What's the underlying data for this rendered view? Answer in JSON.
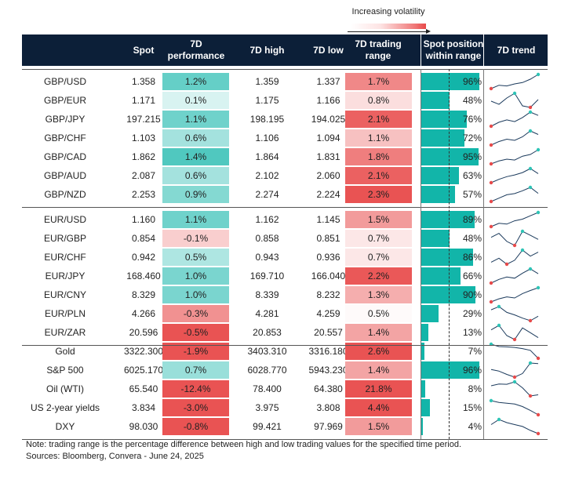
{
  "legend": {
    "label": "Increasing volatility"
  },
  "headers": {
    "instrument": "",
    "spot": "Spot",
    "perf": "7D performance",
    "high": "7D high",
    "low": "7D low",
    "range": "7D trading range",
    "position": "Spot position within range",
    "trend": "7D trend"
  },
  "colors": {
    "header_bg": "#0c1f38",
    "teal": "#12b5a9",
    "red": "#e84a4a",
    "trend_line": "#1b3a5c",
    "trend_max": "#2ec4b6",
    "trend_min": "#e84a4a"
  },
  "chart_data": {
    "type": "table",
    "columns": [
      "",
      "Spot",
      "7D performance",
      "7D high",
      "7D low",
      "7D trading range",
      "Spot position within range",
      "7D trend"
    ],
    "groups": [
      {
        "rows": [
          {
            "name": "GBP/USD",
            "spot": "1.358",
            "perf": "1.2%",
            "high": "1.359",
            "low": "1.337",
            "range": "1.7%",
            "pos": "96%",
            "perf_v": 1.2,
            "range_v": 1.7,
            "pos_v": 96,
            "trend": [
              1.337,
              1.342,
              1.341,
              1.344,
              1.346,
              1.351,
              1.358
            ]
          },
          {
            "name": "GBP/EUR",
            "spot": "1.171",
            "perf": "0.1%",
            "high": "1.175",
            "low": "1.166",
            "range": "0.8%",
            "pos": "48%",
            "perf_v": 0.1,
            "range_v": 0.8,
            "pos_v": 48,
            "trend": [
              1.17,
              1.168,
              1.172,
              1.175,
              1.167,
              1.166,
              1.171
            ]
          },
          {
            "name": "GBP/JPY",
            "spot": "197.215",
            "perf": "1.1%",
            "high": "198.195",
            "low": "194.025",
            "range": "2.1%",
            "pos": "76%",
            "perf_v": 1.1,
            "range_v": 2.1,
            "pos_v": 76,
            "trend": [
              194.025,
              195.2,
              195.9,
              195.4,
              196.6,
              198.195,
              197.215
            ]
          },
          {
            "name": "GBP/CHF",
            "spot": "1.103",
            "perf": "0.6%",
            "high": "1.106",
            "low": "1.094",
            "range": "1.1%",
            "pos": "72%",
            "perf_v": 0.6,
            "range_v": 1.1,
            "pos_v": 72,
            "trend": [
              1.094,
              1.097,
              1.099,
              1.098,
              1.101,
              1.106,
              1.103
            ]
          },
          {
            "name": "GBP/CAD",
            "spot": "1.862",
            "perf": "1.4%",
            "high": "1.864",
            "low": "1.831",
            "range": "1.8%",
            "pos": "95%",
            "perf_v": 1.4,
            "range_v": 1.8,
            "pos_v": 95,
            "trend": [
              1.831,
              1.838,
              1.842,
              1.84,
              1.849,
              1.853,
              1.864
            ]
          },
          {
            "name": "GBP/AUD",
            "spot": "2.087",
            "perf": "0.6%",
            "high": "2.102",
            "low": "2.060",
            "range": "2.1%",
            "pos": "63%",
            "perf_v": 0.6,
            "range_v": 2.1,
            "pos_v": 63,
            "trend": [
              2.06,
              2.07,
              2.078,
              2.083,
              2.09,
              2.102,
              2.087
            ]
          },
          {
            "name": "GBP/NZD",
            "spot": "2.253",
            "perf": "0.9%",
            "high": "2.274",
            "low": "2.224",
            "range": "2.3%",
            "pos": "57%",
            "perf_v": 0.9,
            "range_v": 2.3,
            "pos_v": 57,
            "trend": [
              2.224,
              2.236,
              2.248,
              2.252,
              2.262,
              2.274,
              2.253
            ]
          }
        ]
      },
      {
        "rows": [
          {
            "name": "EUR/USD",
            "spot": "1.160",
            "perf": "1.1%",
            "high": "1.162",
            "low": "1.145",
            "range": "1.5%",
            "pos": "89%",
            "perf_v": 1.1,
            "range_v": 1.5,
            "pos_v": 89,
            "trend": [
              1.145,
              1.149,
              1.148,
              1.152,
              1.154,
              1.158,
              1.162
            ]
          },
          {
            "name": "EUR/GBP",
            "spot": "0.854",
            "perf": "-0.1%",
            "high": "0.858",
            "low": "0.851",
            "range": "0.7%",
            "pos": "48%",
            "perf_v": -0.1,
            "range_v": 0.7,
            "pos_v": 48,
            "trend": [
              0.855,
              0.857,
              0.853,
              0.851,
              0.858,
              0.856,
              0.854
            ]
          },
          {
            "name": "EUR/CHF",
            "spot": "0.942",
            "perf": "0.5%",
            "high": "0.943",
            "low": "0.936",
            "range": "0.7%",
            "pos": "86%",
            "perf_v": 0.5,
            "range_v": 0.7,
            "pos_v": 86,
            "trend": [
              0.937,
              0.939,
              0.936,
              0.938,
              0.943,
              0.94,
              0.942
            ]
          },
          {
            "name": "EUR/JPY",
            "spot": "168.460",
            "perf": "1.0%",
            "high": "169.710",
            "low": "166.040",
            "range": "2.2%",
            "pos": "66%",
            "perf_v": 1.0,
            "range_v": 2.2,
            "pos_v": 66,
            "trend": [
              166.04,
              167.0,
              167.6,
              167.3,
              168.6,
              169.71,
              168.46
            ]
          },
          {
            "name": "EUR/CNY",
            "spot": "8.329",
            "perf": "1.0%",
            "high": "8.339",
            "low": "8.232",
            "range": "1.3%",
            "pos": "90%",
            "perf_v": 1.0,
            "range_v": 1.3,
            "pos_v": 90,
            "trend": [
              8.232,
              8.255,
              8.27,
              8.262,
              8.295,
              8.318,
              8.339
            ]
          },
          {
            "name": "EUR/PLN",
            "spot": "4.266",
            "perf": "-0.3%",
            "high": "4.281",
            "low": "4.259",
            "range": "0.5%",
            "pos": "29%",
            "perf_v": -0.3,
            "range_v": 0.5,
            "pos_v": 29,
            "trend": [
              4.276,
              4.281,
              4.272,
              4.268,
              4.263,
              4.259,
              4.266
            ]
          },
          {
            "name": "EUR/ZAR",
            "spot": "20.596",
            "perf": "-0.5%",
            "high": "20.853",
            "low": "20.557",
            "range": "1.4%",
            "pos": "13%",
            "perf_v": -0.5,
            "range_v": 1.4,
            "pos_v": 13,
            "trend": [
              20.76,
              20.853,
              20.64,
              20.557,
              20.8,
              20.7,
              20.596
            ]
          }
        ]
      },
      {
        "rows": [
          {
            "name": "Gold",
            "spot": "3322.300",
            "perf": "-1.9%",
            "high": "3403.310",
            "low": "3316.180",
            "range": "2.6%",
            "pos": "7%",
            "perf_v": -1.9,
            "range_v": 2.6,
            "pos_v": 7,
            "trend": [
              3403.31,
              3390.0,
              3388.0,
              3385.0,
              3378.0,
              3368.0,
              3322.3
            ]
          },
          {
            "name": "S&P 500",
            "spot": "6025.170",
            "perf": "0.7%",
            "high": "6028.770",
            "low": "5943.230",
            "range": "1.4%",
            "pos": "96%",
            "perf_v": 0.7,
            "range_v": 1.4,
            "pos_v": 96,
            "trend": [
              5990.0,
              5980.0,
              5960.0,
              5943.23,
              5965.0,
              6028.77,
              6025.17
            ]
          },
          {
            "name": "Oil (WTI)",
            "spot": "65.540",
            "perf": "-12.4%",
            "high": "78.400",
            "low": "64.380",
            "range": "21.8%",
            "pos": "8%",
            "perf_v": -12.4,
            "range_v": 21.8,
            "pos_v": 8,
            "trend": [
              74.5,
              76.2,
              76.0,
              78.4,
              72.5,
              64.38,
              65.54
            ]
          },
          {
            "name": "US 2-year yields",
            "spot": "3.834",
            "perf": "-3.0%",
            "high": "3.975",
            "low": "3.808",
            "range": "4.4%",
            "pos": "15%",
            "perf_v": -3.0,
            "range_v": 4.4,
            "pos_v": 15,
            "trend": [
              3.975,
              3.955,
              3.945,
              3.935,
              3.905,
              3.86,
              3.808
            ]
          },
          {
            "name": "DXY",
            "spot": "98.030",
            "perf": "-0.8%",
            "high": "99.421",
            "low": "97.969",
            "range": "1.5%",
            "pos": "4%",
            "perf_v": -0.8,
            "range_v": 1.5,
            "pos_v": 4,
            "trend": [
              98.9,
              99.421,
              99.1,
              98.9,
              98.7,
              98.3,
              97.969
            ]
          }
        ]
      }
    ]
  },
  "footer": {
    "note": "Note: trading range is the percentage difference between high and low trading values for the specified time period.",
    "source": "Sources: Bloomberg, Convera - June 24, 2025"
  }
}
